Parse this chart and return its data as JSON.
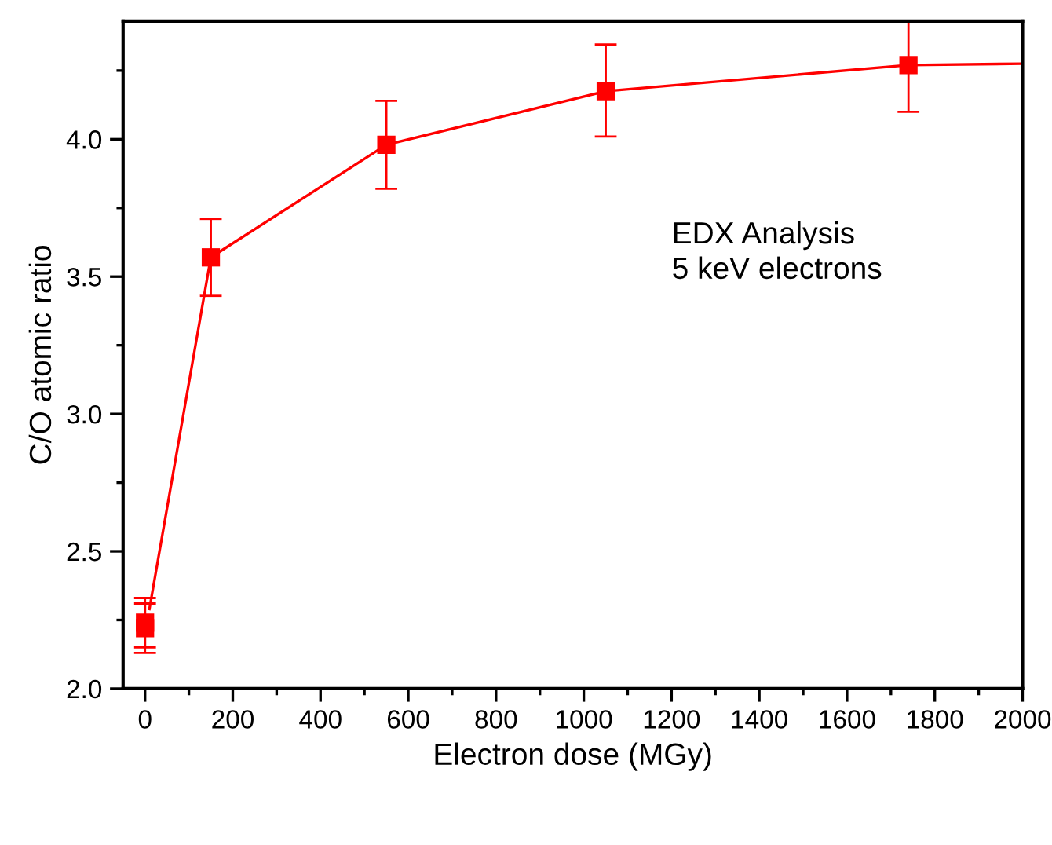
{
  "chart_data": {
    "type": "scatter",
    "xlabel": "Electron dose (MGy)",
    "ylabel": "C/O atomic ratio",
    "xlim": [
      -50,
      2000
    ],
    "xticks": [
      0,
      200,
      400,
      600,
      800,
      1000,
      1200,
      1400,
      1600,
      1800,
      2000
    ],
    "ylim": [
      2.0,
      4.43
    ],
    "yticks": [
      {
        "value": 2.0,
        "label": "2.0"
      },
      2.5,
      {
        "value": 3.0,
        "label": "3.0"
      },
      3.5,
      {
        "value": 4.0,
        "label": "4.0"
      }
    ],
    "grid": false,
    "legend": false,
    "series": [
      {
        "type": "line",
        "color": "#ff0000",
        "marker": "none",
        "x": [
          10,
          150,
          550,
          1050,
          1740,
          2000
        ],
        "values": [
          2.29,
          3.57,
          3.98,
          4.175,
          4.27,
          4.275
        ]
      },
      {
        "color": "#ff0000",
        "marker": "square",
        "x": [
          0,
          0,
          150,
          550,
          1050,
          1740
        ],
        "values": [
          2.22,
          2.24,
          3.57,
          3.98,
          4.175,
          4.27
        ],
        "errors": [
          [
            2.13,
            2.31
          ],
          [
            2.15,
            2.33
          ],
          [
            3.43,
            3.71
          ],
          [
            3.82,
            4.14
          ],
          [
            4.01,
            4.345
          ],
          [
            4.1,
            4.43
          ]
        ]
      }
    ],
    "annotations": [
      "EDX Analysis\n5 keV electrons"
    ]
  }
}
